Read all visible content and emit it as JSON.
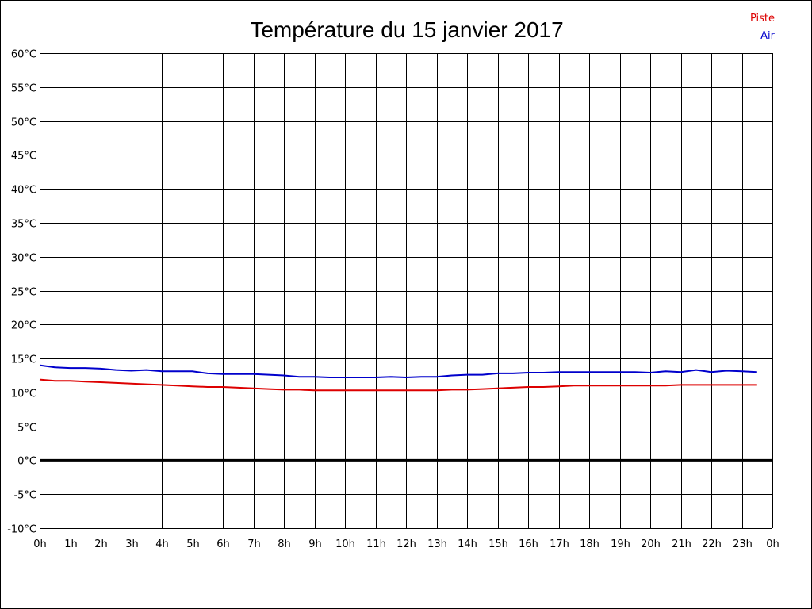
{
  "chart_data": {
    "type": "line",
    "title": "Température du 15 janvier 2017",
    "xlabel": "",
    "ylabel": "",
    "x_ticks": [
      "0h",
      "1h",
      "2h",
      "3h",
      "4h",
      "5h",
      "6h",
      "7h",
      "8h",
      "9h",
      "10h",
      "11h",
      "12h",
      "13h",
      "14h",
      "15h",
      "16h",
      "17h",
      "18h",
      "19h",
      "20h",
      "21h",
      "22h",
      "23h",
      "0h"
    ],
    "y_ticks": [
      "60°C",
      "55°C",
      "50°C",
      "45°C",
      "40°C",
      "35°C",
      "30°C",
      "25°C",
      "20°C",
      "15°C",
      "10°C",
      "5°C",
      "0°C",
      "-5°C",
      "-10°C"
    ],
    "xlim": [
      0,
      24
    ],
    "ylim": [
      -10,
      60
    ],
    "grid": true,
    "zero_line": true,
    "legend_position": "top-right",
    "series": [
      {
        "name": "Piste",
        "color": "#dd0000",
        "x": [
          0,
          0.5,
          1,
          1.5,
          2,
          2.5,
          3,
          3.5,
          4,
          4.5,
          5,
          5.5,
          6,
          6.5,
          7,
          7.5,
          8,
          8.5,
          9,
          9.5,
          10,
          10.5,
          11,
          11.5,
          12,
          12.5,
          13,
          13.5,
          14,
          14.5,
          15,
          15.5,
          16,
          16.5,
          17,
          17.5,
          18,
          18.5,
          19,
          19.5,
          20,
          20.5,
          21,
          21.5,
          22,
          22.5,
          23,
          23.5
        ],
        "values": [
          11.9,
          11.7,
          11.7,
          11.6,
          11.5,
          11.4,
          11.3,
          11.2,
          11.1,
          11.0,
          10.9,
          10.8,
          10.8,
          10.7,
          10.6,
          10.5,
          10.4,
          10.4,
          10.3,
          10.3,
          10.3,
          10.3,
          10.3,
          10.3,
          10.3,
          10.3,
          10.3,
          10.4,
          10.4,
          10.5,
          10.6,
          10.7,
          10.8,
          10.8,
          10.9,
          11.0,
          11.0,
          11.0,
          11.0,
          11.0,
          11.0,
          11.0,
          11.1,
          11.1,
          11.1,
          11.1,
          11.1,
          11.1
        ]
      },
      {
        "name": "Air",
        "color": "#0000cc",
        "x": [
          0,
          0.5,
          1,
          1.5,
          2,
          2.5,
          3,
          3.5,
          4,
          4.5,
          5,
          5.5,
          6,
          6.5,
          7,
          7.5,
          8,
          8.5,
          9,
          9.5,
          10,
          10.5,
          11,
          11.5,
          12,
          12.5,
          13,
          13.5,
          14,
          14.5,
          15,
          15.5,
          16,
          16.5,
          17,
          17.5,
          18,
          18.5,
          19,
          19.5,
          20,
          20.5,
          21,
          21.5,
          22,
          22.5,
          23,
          23.5
        ],
        "values": [
          14.0,
          13.7,
          13.6,
          13.6,
          13.5,
          13.3,
          13.2,
          13.3,
          13.1,
          13.1,
          13.1,
          12.8,
          12.7,
          12.7,
          12.7,
          12.6,
          12.5,
          12.3,
          12.3,
          12.2,
          12.2,
          12.2,
          12.2,
          12.3,
          12.2,
          12.3,
          12.3,
          12.5,
          12.6,
          12.6,
          12.8,
          12.8,
          12.9,
          12.9,
          13.0,
          13.0,
          13.0,
          13.0,
          13.0,
          13.0,
          12.9,
          13.1,
          13.0,
          13.3,
          13.0,
          13.2,
          13.1,
          13.0
        ]
      }
    ]
  }
}
